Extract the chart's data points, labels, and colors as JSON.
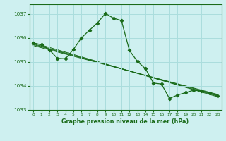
{
  "title": "Graphe pression niveau de la mer (hPa)",
  "background_color": "#cef0f0",
  "grid_color": "#aadddd",
  "line_color": "#1a6b1a",
  "xlim": [
    -0.5,
    23.5
  ],
  "ylim": [
    1033.0,
    1037.4
  ],
  "yticks": [
    1033,
    1034,
    1035,
    1036,
    1037
  ],
  "xticks": [
    0,
    1,
    2,
    3,
    4,
    5,
    6,
    7,
    8,
    9,
    10,
    11,
    12,
    13,
    14,
    15,
    16,
    17,
    18,
    19,
    20,
    21,
    22,
    23
  ],
  "bg_lines": [
    {
      "x": [
        0,
        23
      ],
      "y": [
        1035.8,
        1033.55
      ]
    },
    {
      "x": [
        0,
        23
      ],
      "y": [
        1035.75,
        1033.58
      ]
    },
    {
      "x": [
        0,
        23
      ],
      "y": [
        1035.72,
        1033.62
      ]
    },
    {
      "x": [
        0,
        23
      ],
      "y": [
        1035.68,
        1033.65
      ]
    }
  ],
  "main_series_x": [
    0,
    1,
    2,
    3,
    4,
    5,
    6,
    7,
    8,
    9,
    10,
    11,
    12,
    13,
    14,
    15,
    16,
    17,
    18,
    19,
    20,
    21,
    22,
    23
  ],
  "main_series_y": [
    1035.78,
    1035.72,
    1035.5,
    1035.15,
    1035.13,
    1035.52,
    1036.0,
    1036.32,
    1036.62,
    1037.02,
    1036.82,
    1036.72,
    1035.48,
    1035.02,
    1034.72,
    1034.12,
    1034.08,
    1033.48,
    1033.62,
    1033.72,
    1033.82,
    1033.8,
    1033.7,
    1033.6
  ]
}
